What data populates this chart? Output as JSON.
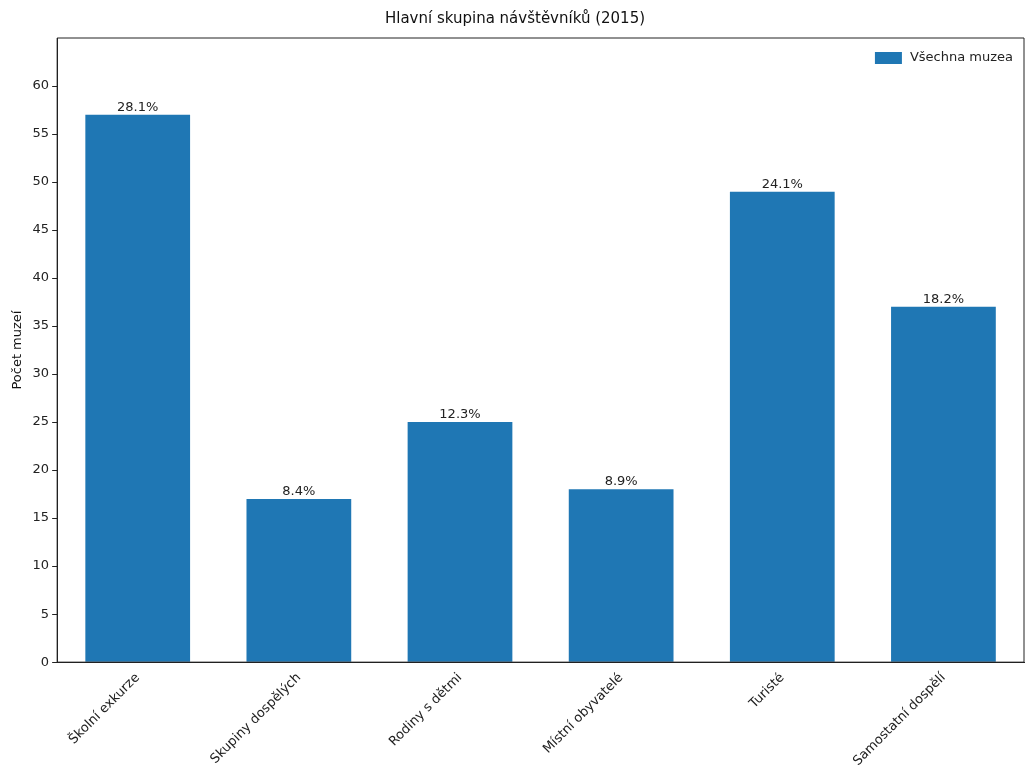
{
  "chart_data": {
    "type": "bar",
    "title": "Hlavní skupina návštěvníků (2015)",
    "ylabel": "Počet muzeí",
    "categories": [
      "Školní exkurze",
      "Skupiny dospělých",
      "Rodiny s dětmi",
      "Místní obyvatelé",
      "Turisté",
      "Samostatní dospělí"
    ],
    "series": [
      {
        "name": "Všechna muzea",
        "color": "#1f77b4",
        "values": [
          57,
          17,
          25,
          18,
          49,
          37
        ]
      }
    ],
    "annotations": [
      {
        "text": "28.1%",
        "x": "Školní exkurze",
        "y": 57
      },
      {
        "text": "8.4%",
        "x": "Skupiny dospělých",
        "y": 17
      },
      {
        "text": "12.3%",
        "x": "Rodiny s dětmi",
        "y": 25
      },
      {
        "text": "8.9%",
        "x": "Místní obyvatelé",
        "y": 18
      },
      {
        "text": "24.1%",
        "x": "Turisté",
        "y": 49
      },
      {
        "text": "18.2%",
        "x": "Samostatní dospělí",
        "y": 37
      }
    ],
    "ylim": [
      0,
      65
    ],
    "yticks": [
      0,
      5,
      10,
      15,
      20,
      25,
      30,
      35,
      40,
      45,
      50,
      55,
      60
    ],
    "grid": false,
    "legend": "top right"
  }
}
